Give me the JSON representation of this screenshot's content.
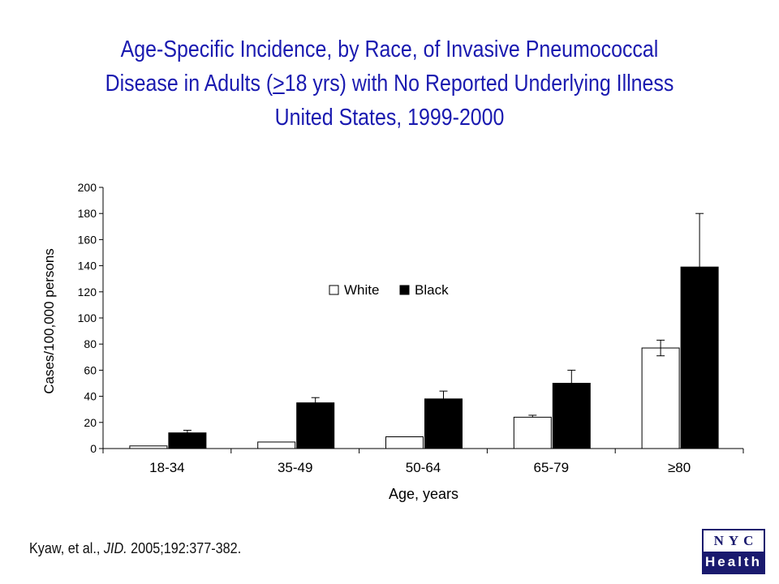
{
  "slide": {
    "title_line1": "Age-Specific Incidence, by Race, of Invasive Pneumococcal",
    "title_line2_pre": "Disease in Adults (",
    "title_line2_ge": ">",
    "title_line2_post": "18 yrs) with No Reported Underlying Illness",
    "title_line3": "United States, 1999-2000",
    "citation_author": "Kyaw, et al., ",
    "citation_journal": "JID.",
    "citation_rest": " 2005;192:377-382.",
    "logo_top": "NYC",
    "logo_bottom": "Health"
  },
  "chart_data": {
    "type": "bar",
    "title": "",
    "xlabel": "Age, years",
    "ylabel": "Cases/100,000 persons",
    "categories": [
      "18-34",
      "35-49",
      "50-64",
      "65-79",
      "≥80"
    ],
    "ylim": [
      0,
      200
    ],
    "yticks": [
      0,
      20,
      40,
      60,
      80,
      100,
      120,
      140,
      160,
      180,
      200
    ],
    "grid": false,
    "legend_position": "center",
    "series": [
      {
        "name": "White",
        "color": "#ffffff",
        "values": [
          2,
          5,
          9,
          24,
          77
        ],
        "err_upper": [
          0,
          0,
          0,
          25.5,
          83
        ],
        "err_lower": [
          0,
          0,
          0,
          0,
          71
        ]
      },
      {
        "name": "Black",
        "color": "#000000",
        "values": [
          12,
          35,
          38,
          50,
          139
        ],
        "err_upper": [
          14,
          39,
          44,
          60,
          180
        ],
        "err_lower": [
          0,
          0,
          0,
          0,
          0
        ]
      }
    ]
  }
}
